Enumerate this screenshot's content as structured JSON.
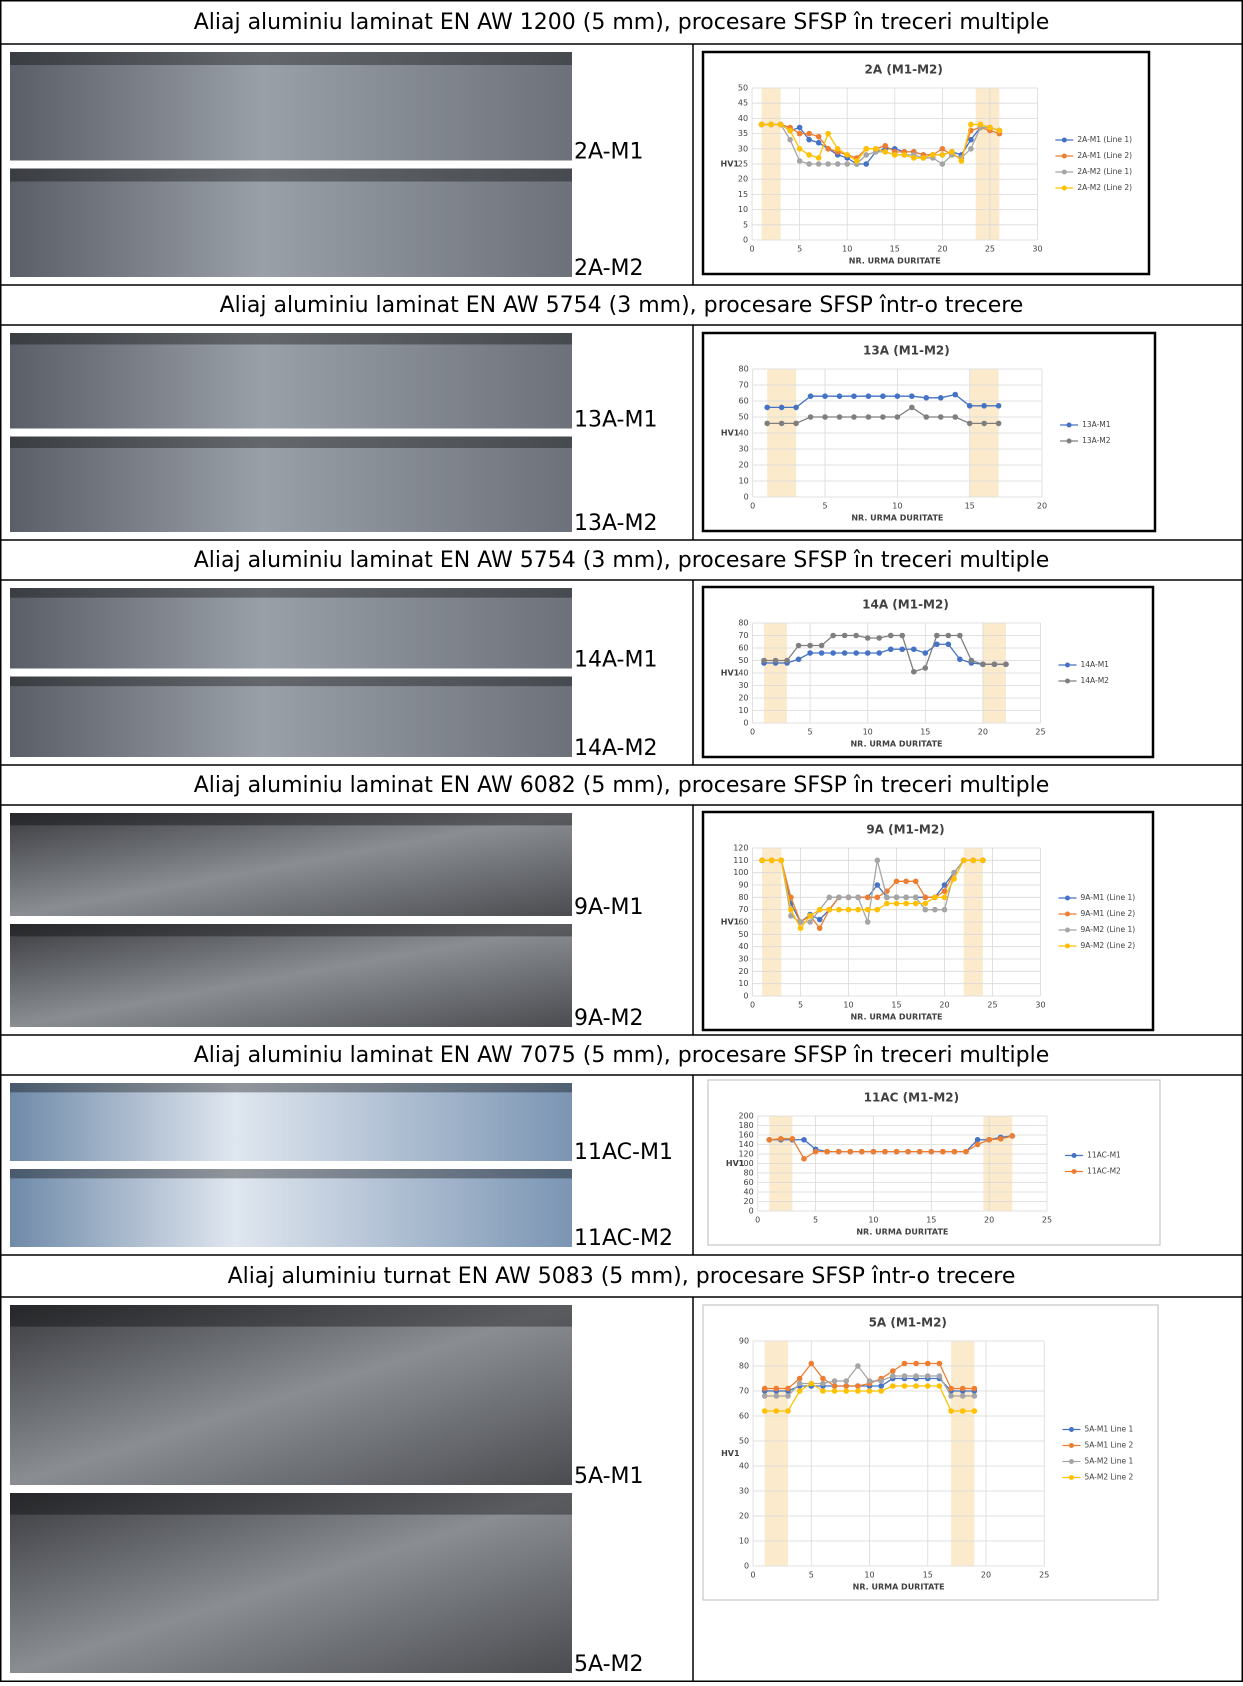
{
  "rows": [
    {
      "heading": "Aliaj aluminiu laminat EN AW 1200 (5 mm), procesare SFSP în treceri multiple",
      "samples": [
        "2A-M1",
        "2A-M2"
      ],
      "chart": {
        "type": "line",
        "title": "2A (M1-M2)",
        "ylabel": "HV1",
        "xlabel": "NR. URMA DURITATE",
        "xlim": [
          0,
          30
        ],
        "xticks": [
          0,
          5,
          10,
          15,
          20,
          25,
          30
        ],
        "ylim": [
          0,
          50
        ],
        "yticks": [
          0,
          5,
          10,
          15,
          20,
          25,
          30,
          35,
          40,
          45,
          50
        ],
        "grid": true,
        "shaded_x": [
          [
            1,
            3
          ],
          [
            23.5,
            26
          ]
        ],
        "x": [
          1,
          2,
          3,
          4,
          5,
          6,
          7,
          8,
          9,
          10,
          11,
          12,
          13,
          14,
          15,
          16,
          17,
          18,
          19,
          20,
          21,
          22,
          23,
          24,
          25,
          26
        ],
        "series": [
          {
            "name": "2A-M1 (Line 1)",
            "color": "#4472c4",
            "values": [
              38,
              38,
              38,
              36,
              37,
              33,
              32,
              30,
              28,
              27,
              25,
              25,
              29,
              30,
              30,
              29,
              29,
              28,
              28,
              28,
              29,
              28,
              33,
              37,
              37,
              36
            ]
          },
          {
            "name": "2A-M1 (Line 2)",
            "color": "#ed7d31",
            "values": [
              38,
              38,
              38,
              37,
              35,
              35,
              34,
              30,
              29,
              28,
              27,
              30,
              30,
              31,
              29,
              29,
              29,
              28,
              28,
              30,
              28,
              27,
              36,
              37,
              36,
              35
            ]
          },
          {
            "name": "2A-M2 (Line 1)",
            "color": "#a5a5a5",
            "values": [
              38,
              38,
              38,
              33,
              26,
              25,
              25,
              25,
              25,
              25,
              25,
              28,
              29,
              29,
              28,
              28,
              28,
              27,
              27,
              25,
              28,
              27,
              30,
              37,
              37,
              36
            ]
          },
          {
            "name": "2A-M2 (Line 2)",
            "color": "#ffc000",
            "values": [
              38,
              38,
              38,
              36,
              30,
              28,
              27,
              35,
              30,
              28,
              26,
              30,
              30,
              29,
              28,
              28,
              27,
              27,
              28,
              28,
              29,
              26,
              38,
              38,
              37,
              36
            ]
          }
        ]
      }
    },
    {
      "heading": "Aliaj aluminiu laminat EN AW 5754 (3 mm), procesare SFSP într-o trecere",
      "samples": [
        "13A-M1",
        "13A-M2"
      ],
      "chart": {
        "type": "line",
        "title": "13A (M1-M2)",
        "ylabel": "HV1",
        "xlabel": "NR. URMA DURITATE",
        "xlim": [
          0,
          20
        ],
        "xticks": [
          0,
          5,
          10,
          15,
          20
        ],
        "ylim": [
          0,
          80
        ],
        "yticks": [
          0,
          10,
          20,
          30,
          40,
          50,
          60,
          70,
          80
        ],
        "grid": true,
        "shaded_x": [
          [
            1,
            3
          ],
          [
            15,
            17
          ]
        ],
        "x": [
          1,
          2,
          3,
          4,
          5,
          6,
          7,
          8,
          9,
          10,
          11,
          12,
          13,
          14,
          15,
          16,
          17
        ],
        "series": [
          {
            "name": "13A-M1",
            "color": "#4472c4",
            "values": [
              56,
              56,
              56,
              63,
              63,
              63,
              63,
              63,
              63,
              63,
              63,
              62,
              62,
              64,
              57,
              57,
              57
            ]
          },
          {
            "name": "13A-M2",
            "color": "#7f7f7f",
            "values": [
              46,
              46,
              46,
              50,
              50,
              50,
              50,
              50,
              50,
              50,
              56,
              50,
              50,
              50,
              46,
              46,
              46
            ]
          }
        ]
      }
    },
    {
      "heading": "Aliaj aluminiu laminat EN AW 5754 (3 mm), procesare SFSP în treceri multiple",
      "samples": [
        "14A-M1",
        "14A-M2"
      ],
      "chart": {
        "type": "line",
        "title": "14A (M1-M2)",
        "ylabel": "HV1",
        "xlabel": "NR. URMA DURITATE",
        "xlim": [
          0,
          25
        ],
        "xticks": [
          0,
          5,
          10,
          15,
          20,
          25
        ],
        "ylim": [
          0,
          80
        ],
        "yticks": [
          0,
          10,
          20,
          30,
          40,
          50,
          60,
          70,
          80
        ],
        "grid": true,
        "shaded_x": [
          [
            1,
            3
          ],
          [
            20,
            22
          ]
        ],
        "x": [
          1,
          2,
          3,
          4,
          5,
          6,
          7,
          8,
          9,
          10,
          11,
          12,
          13,
          14,
          15,
          16,
          17,
          18,
          19,
          20,
          21,
          22
        ],
        "series": [
          {
            "name": "14A-M1",
            "color": "#4472c4",
            "values": [
              48,
              48,
              48,
              51,
              56,
              56,
              56,
              56,
              56,
              56,
              56,
              59,
              59,
              59,
              56,
              63,
              63,
              51,
              48,
              47,
              47,
              47
            ]
          },
          {
            "name": "14A-M2",
            "color": "#7f7f7f",
            "values": [
              50,
              50,
              50,
              62,
              62,
              62,
              70,
              70,
              70,
              68,
              68,
              70,
              70,
              41,
              44,
              70,
              70,
              70,
              50,
              47,
              47,
              47
            ]
          }
        ]
      }
    },
    {
      "heading": "Aliaj aluminiu laminat EN AW 6082 (5 mm), procesare SFSP în treceri multiple",
      "samples": [
        "9A-M1",
        "9A-M2"
      ],
      "chart": {
        "type": "line",
        "title": "9A (M1-M2)",
        "ylabel": "HV1",
        "xlabel": "NR. URMA DURITATE",
        "xlim": [
          0,
          30
        ],
        "xticks": [
          0,
          5,
          10,
          15,
          20,
          25,
          30
        ],
        "ylim": [
          0,
          120
        ],
        "yticks": [
          0,
          10,
          20,
          30,
          40,
          50,
          60,
          70,
          80,
          90,
          100,
          110,
          120
        ],
        "grid": true,
        "shaded_x": [
          [
            1,
            3
          ],
          [
            22,
            24
          ]
        ],
        "x": [
          1,
          2,
          3,
          4,
          5,
          6,
          7,
          8,
          9,
          10,
          11,
          12,
          13,
          14,
          15,
          16,
          17,
          18,
          19,
          20,
          21,
          22,
          23,
          24
        ],
        "series": [
          {
            "name": "9A-M1 (Line 1)",
            "color": "#4472c4",
            "values": [
              110,
              110,
              110,
              75,
              60,
              66,
              62,
              70,
              80,
              80,
              80,
              80,
              90,
              80,
              80,
              80,
              80,
              80,
              80,
              90,
              100,
              110,
              110,
              110
            ]
          },
          {
            "name": "9A-M1 (Line 2)",
            "color": "#ed7d31",
            "values": [
              110,
              110,
              110,
              80,
              60,
              65,
              55,
              70,
              80,
              80,
              80,
              80,
              80,
              85,
              93,
              93,
              93,
              80,
              80,
              85,
              100,
              110,
              110,
              110
            ]
          },
          {
            "name": "9A-M2 (Line 1)",
            "color": "#a5a5a5",
            "values": [
              110,
              110,
              110,
              65,
              60,
              60,
              70,
              80,
              80,
              80,
              80,
              60,
              110,
              80,
              80,
              80,
              80,
              70,
              70,
              70,
              100,
              110,
              110,
              110
            ]
          },
          {
            "name": "9A-M2 (Line 2)",
            "color": "#ffc000",
            "values": [
              110,
              110,
              110,
              70,
              55,
              65,
              70,
              70,
              70,
              70,
              70,
              70,
              70,
              75,
              75,
              75,
              75,
              75,
              80,
              80,
              95,
              110,
              110,
              110
            ]
          }
        ]
      }
    },
    {
      "heading": "Aliaj aluminiu laminat EN AW 7075 (5 mm), procesare SFSP în treceri multiple",
      "samples": [
        "11AC-M1",
        "11AC-M2"
      ],
      "chart": {
        "type": "line",
        "title": "11AC (M1-M2)",
        "ylabel": "HV1",
        "xlabel": "NR. URMA DURITATE",
        "xlim": [
          0,
          25
        ],
        "xticks": [
          0,
          5,
          10,
          15,
          20,
          25
        ],
        "ylim": [
          0,
          200
        ],
        "yticks": [
          0,
          20,
          40,
          60,
          80,
          100,
          120,
          140,
          160,
          180,
          200
        ],
        "grid": true,
        "shaded_x": [
          [
            1,
            3
          ],
          [
            19.5,
            22
          ]
        ],
        "x": [
          1,
          2,
          3,
          4,
          5,
          6,
          7,
          8,
          9,
          10,
          11,
          12,
          13,
          14,
          15,
          16,
          17,
          18,
          19,
          20,
          21,
          22
        ],
        "series": [
          {
            "name": "11AC-M1",
            "color": "#4472c4",
            "values": [
              150,
              150,
              150,
              150,
              130,
              125,
              125,
              125,
              125,
              125,
              125,
              125,
              125,
              125,
              125,
              125,
              125,
              125,
              150,
              150,
              155,
              158
            ]
          },
          {
            "name": "11AC-M2",
            "color": "#ed7d31",
            "values": [
              150,
              152,
              152,
              110,
              125,
              125,
              125,
              125,
              125,
              125,
              125,
              125,
              125,
              125,
              125,
              125,
              125,
              125,
              140,
              150,
              152,
              158
            ]
          }
        ]
      }
    },
    {
      "heading": "Aliaj aluminiu turnat EN AW 5083 (5 mm), procesare SFSP într-o trecere",
      "samples": [
        "5A-M1",
        "5A-M2"
      ],
      "chart": {
        "type": "line",
        "title": "5A (M1-M2)",
        "ylabel": "HV1",
        "xlabel": "NR. URMA DURITATE",
        "xlim": [
          0,
          25
        ],
        "xticks": [
          0,
          5,
          10,
          15,
          20,
          25
        ],
        "ylim": [
          0,
          90
        ],
        "yticks": [
          0,
          10,
          20,
          30,
          40,
          50,
          60,
          70,
          80,
          90
        ],
        "grid": true,
        "shaded_x": [
          [
            1,
            3
          ],
          [
            17,
            19
          ]
        ],
        "x": [
          1,
          2,
          3,
          4,
          5,
          6,
          7,
          8,
          9,
          10,
          11,
          12,
          13,
          14,
          15,
          16,
          17,
          18,
          19
        ],
        "series": [
          {
            "name": "5A-M1 Line 1",
            "color": "#4472c4",
            "values": [
              70,
              70,
              70,
              72,
              72,
              72,
              72,
              72,
              72,
              72,
              72,
              75,
              75,
              75,
              75,
              75,
              70,
              70,
              70
            ]
          },
          {
            "name": "5A-M1 Line 2",
            "color": "#ed7d31",
            "values": [
              71,
              71,
              71,
              75,
              81,
              75,
              72,
              72,
              72,
              73,
              75,
              78,
              81,
              81,
              81,
              81,
              71,
              71,
              71
            ]
          },
          {
            "name": "5A-M2 Line 1",
            "color": "#a5a5a5",
            "values": [
              68,
              68,
              68,
              73,
              73,
              73,
              74,
              74,
              80,
              74,
              74,
              76,
              76,
              76,
              76,
              76,
              68,
              68,
              68
            ]
          },
          {
            "name": "5A-M2 Line 2",
            "color": "#ffc000",
            "values": [
              62,
              62,
              62,
              70,
              73,
              70,
              70,
              70,
              70,
              70,
              70,
              72,
              72,
              72,
              72,
              72,
              62,
              62,
              62
            ]
          }
        ]
      }
    }
  ]
}
